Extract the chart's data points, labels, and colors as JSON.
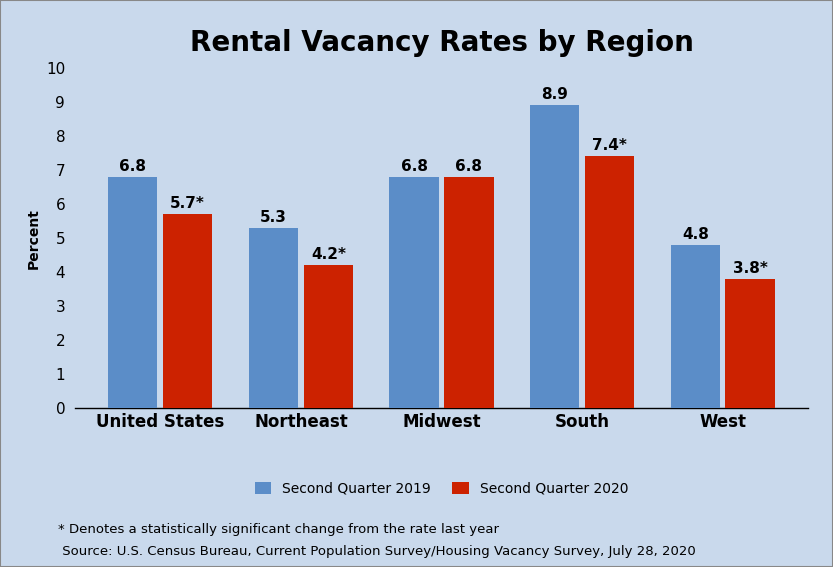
{
  "title": "Rental Vacancy Rates by Region",
  "ylabel": "Percent",
  "categories": [
    "United States",
    "Northeast",
    "Midwest",
    "South",
    "West"
  ],
  "series": {
    "Second Quarter 2019": [
      6.8,
      5.3,
      6.8,
      8.9,
      4.8
    ],
    "Second Quarter 2020": [
      5.7,
      4.2,
      6.8,
      7.4,
      3.8
    ]
  },
  "labels_2019": [
    "6.8",
    "5.3",
    "6.8",
    "8.9",
    "4.8"
  ],
  "labels_2020": [
    "5.7*",
    "4.2*",
    "6.8",
    "7.4*",
    "3.8*"
  ],
  "color_2019": "#5b8dc8",
  "color_2020": "#cc2200",
  "background_color": "#c9d9ec",
  "ylim": [
    0,
    10
  ],
  "yticks": [
    0,
    1,
    2,
    3,
    4,
    5,
    6,
    7,
    8,
    9,
    10
  ],
  "footnote1": "* Denotes a statistically significant change from the rate last year",
  "footnote2": " Source: U.S. Census Bureau, Current Population Survey/Housing Vacancy Survey, July 28, 2020",
  "title_fontsize": 20,
  "axis_label_fontsize": 10,
  "tick_fontsize": 11,
  "bar_label_fontsize": 11,
  "legend_fontsize": 10,
  "category_fontsize": 12,
  "footnote_fontsize": 9.5,
  "border_color": "#888888"
}
